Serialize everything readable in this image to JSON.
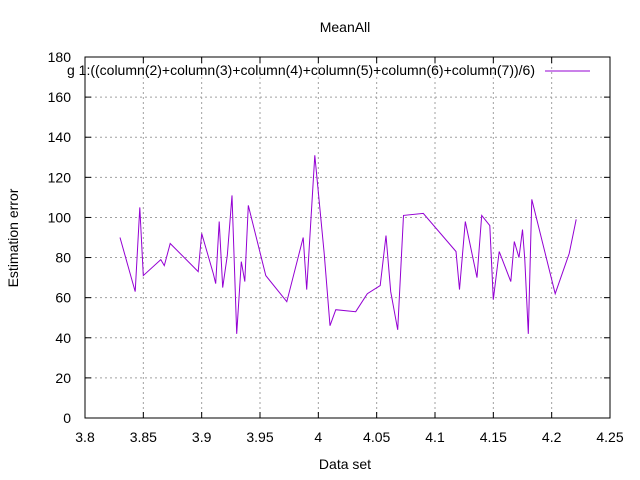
{
  "chart_data": {
    "type": "line",
    "title": "MeanAll",
    "xlabel": "Data set",
    "ylabel": "Estimation error",
    "xlim": [
      3.8,
      4.25
    ],
    "ylim": [
      0,
      180
    ],
    "x_ticks": [
      "3.8",
      "3.85",
      "3.9",
      "3.95",
      "4",
      "4.05",
      "4.1",
      "4.15",
      "4.2",
      "4.25"
    ],
    "y_ticks": [
      "0",
      "20",
      "40",
      "60",
      "80",
      "100",
      "120",
      "140",
      "160",
      "180"
    ],
    "grid": true,
    "legend_position": "top-right",
    "series": [
      {
        "name": "g 1:((column(2)+column(3)+column(4)+column(5)+column(6)+column(7))/6)",
        "color": "#9400d3",
        "x": [
          3.83,
          3.843,
          3.847,
          3.85,
          3.865,
          3.868,
          3.873,
          3.897,
          3.9,
          3.91,
          3.912,
          3.915,
          3.918,
          3.922,
          3.926,
          3.93,
          3.934,
          3.937,
          3.94,
          3.955,
          3.973,
          3.987,
          3.99,
          3.997,
          4.005,
          4.01,
          4.015,
          4.032,
          4.042,
          4.053,
          4.058,
          4.062,
          4.068,
          4.073,
          4.09,
          4.118,
          4.121,
          4.126,
          4.136,
          4.14,
          4.147,
          4.15,
          4.155,
          4.165,
          4.168,
          4.172,
          4.175,
          4.177,
          4.18,
          4.183,
          4.203,
          4.215,
          4.221
        ],
        "y": [
          90,
          63,
          105,
          71,
          79,
          76,
          87,
          73,
          92,
          72,
          67,
          98,
          65,
          81,
          111,
          42,
          78,
          68,
          106,
          71,
          58,
          90,
          64,
          131,
          82,
          46,
          54,
          53,
          62,
          66,
          91,
          63,
          44,
          101,
          102,
          83,
          64,
          98,
          70,
          101,
          96,
          59,
          83,
          68,
          88,
          80,
          94,
          79,
          42,
          109,
          62,
          82,
          99
        ]
      }
    ]
  }
}
